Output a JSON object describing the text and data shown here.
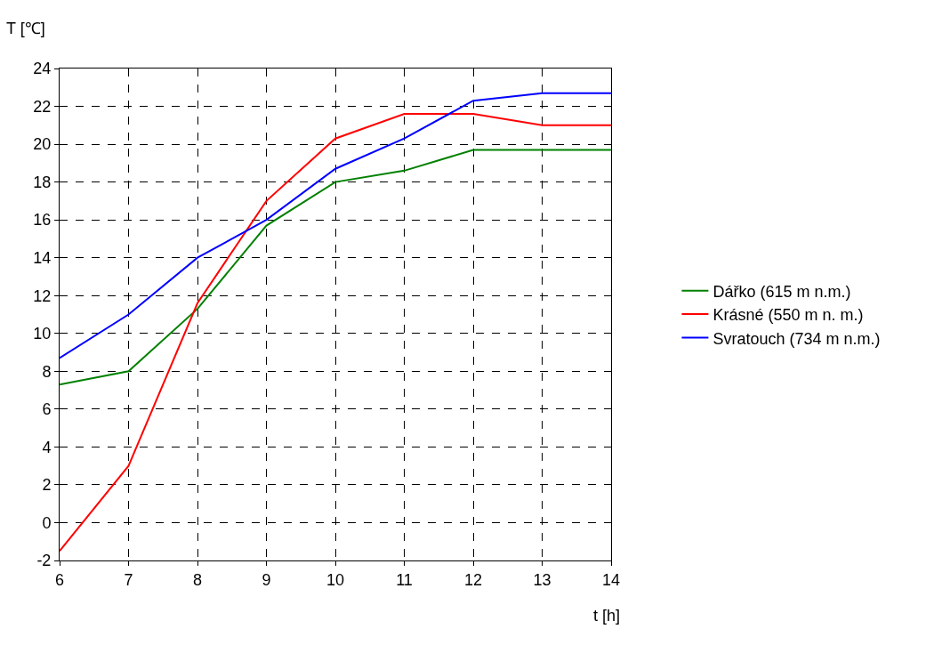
{
  "chart_data": {
    "type": "line",
    "xlabel": "t [h]",
    "ylabel": "T [℃]",
    "x": [
      6,
      7,
      8,
      9,
      10,
      11,
      12,
      13,
      14
    ],
    "series": [
      {
        "name": "Dářko (615 m n.m.)",
        "color": "#008000",
        "values": [
          7.3,
          8.0,
          11.3,
          15.7,
          18.0,
          18.6,
          19.7,
          19.7,
          19.7
        ]
      },
      {
        "name": "Krásné (550 m n. m.)",
        "color": "#ff0000",
        "values": [
          -1.5,
          3.0,
          11.6,
          17.0,
          20.3,
          21.6,
          21.6,
          21.0,
          21.0
        ]
      },
      {
        "name": "Svratouch (734 m n.m.)",
        "color": "#0000ff",
        "values": [
          8.7,
          11.0,
          14.0,
          16.0,
          18.7,
          20.3,
          22.3,
          22.7,
          22.7
        ]
      }
    ],
    "xlim": [
      6,
      14
    ],
    "xticks": [
      6,
      7,
      8,
      9,
      10,
      11,
      12,
      13,
      14
    ],
    "ylim": [
      -2,
      24
    ],
    "yticks": [
      -2,
      0,
      2,
      4,
      6,
      8,
      10,
      12,
      14,
      16,
      18,
      20,
      22,
      24
    ],
    "grid": true,
    "legend": "right",
    "marker": "none",
    "line_style": "solid"
  }
}
